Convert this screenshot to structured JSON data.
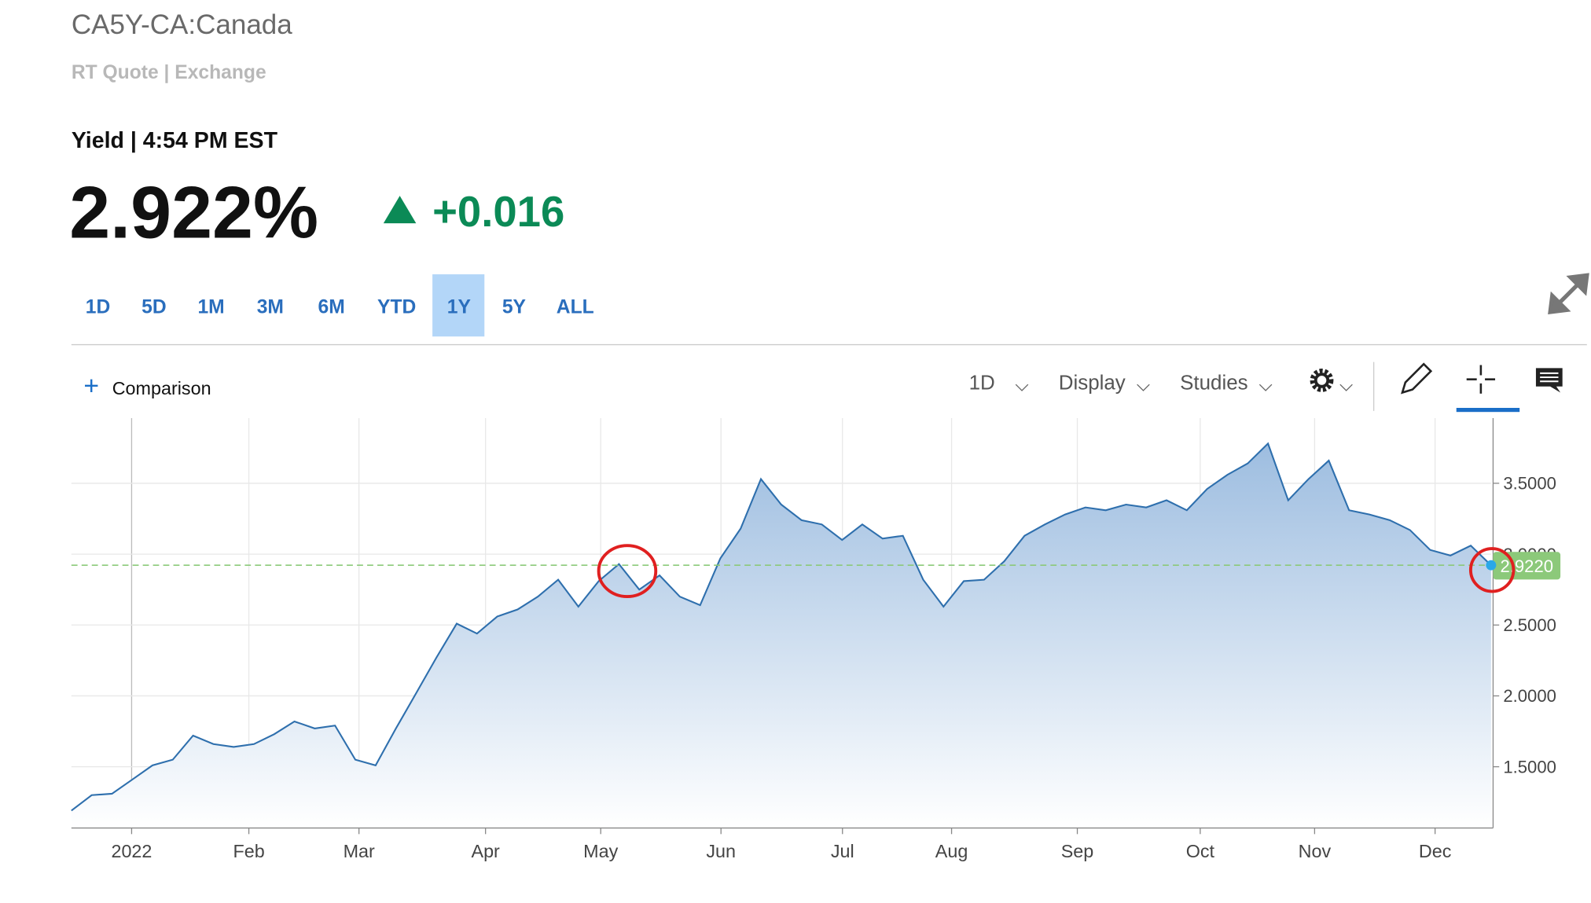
{
  "header": {
    "title": "CA5Y-CA:Canada",
    "subtitle": "RT Quote | Exchange",
    "quote_label": "Yield | 4:54 PM EST",
    "price": "2.922%",
    "change": "+0.016",
    "change_color": "#0b8a56"
  },
  "ranges": [
    "1D",
    "5D",
    "1M",
    "3M",
    "6M",
    "YTD",
    "1Y",
    "5Y",
    "ALL"
  ],
  "selected_range_index": 6,
  "toolbar": {
    "comparison": "Comparison",
    "interval": "1D",
    "display": "Display",
    "studies": "Studies"
  },
  "chart_data": {
    "type": "area",
    "color": "#2e6fad",
    "grid": true,
    "values": [
      1.19,
      1.3,
      1.31,
      1.41,
      1.51,
      1.55,
      1.72,
      1.66,
      1.64,
      1.66,
      1.73,
      1.82,
      1.77,
      1.79,
      1.55,
      1.51,
      1.77,
      2.02,
      2.27,
      2.51,
      2.44,
      2.56,
      2.61,
      2.7,
      2.82,
      2.63,
      2.81,
      2.93,
      2.75,
      2.85,
      2.7,
      2.64,
      2.97,
      3.18,
      3.53,
      3.35,
      3.24,
      3.21,
      3.1,
      3.21,
      3.11,
      3.13,
      2.82,
      2.63,
      2.81,
      2.82,
      2.95,
      3.13,
      3.21,
      3.28,
      3.33,
      3.31,
      3.35,
      3.33,
      3.38,
      3.31,
      3.46,
      3.56,
      3.64,
      3.78,
      3.38,
      3.53,
      3.66,
      3.31,
      3.28,
      3.24,
      3.17,
      3.03,
      2.99,
      3.06,
      2.922
    ],
    "xlim": [
      0,
      70
    ],
    "xticks": [
      {
        "value": 2.97,
        "label": "2022"
      },
      {
        "value": 8.75,
        "label": "Feb"
      },
      {
        "value": 14.18,
        "label": "Mar"
      },
      {
        "value": 20.42,
        "label": "Apr"
      },
      {
        "value": 26.1,
        "label": "May"
      },
      {
        "value": 32.03,
        "label": "Jun"
      },
      {
        "value": 38.02,
        "label": "Jul"
      },
      {
        "value": 43.4,
        "label": "Aug"
      },
      {
        "value": 49.6,
        "label": "Sep"
      },
      {
        "value": 55.66,
        "label": "Oct"
      },
      {
        "value": 61.3,
        "label": "Nov"
      },
      {
        "value": 67.24,
        "label": "Dec"
      }
    ],
    "ylim": [
      1.068,
      3.96
    ],
    "yticks": [
      {
        "value": 1.5,
        "label": "1.5000"
      },
      {
        "value": 2,
        "label": "2.0000"
      },
      {
        "value": 2.5,
        "label": "2.5000"
      },
      {
        "value": 3,
        "label": "3.0000"
      },
      {
        "value": 3.5,
        "label": "3.5000"
      }
    ],
    "reference_line": {
      "value": 2.922,
      "label": "2.9220",
      "color": "#8cc97a"
    }
  }
}
